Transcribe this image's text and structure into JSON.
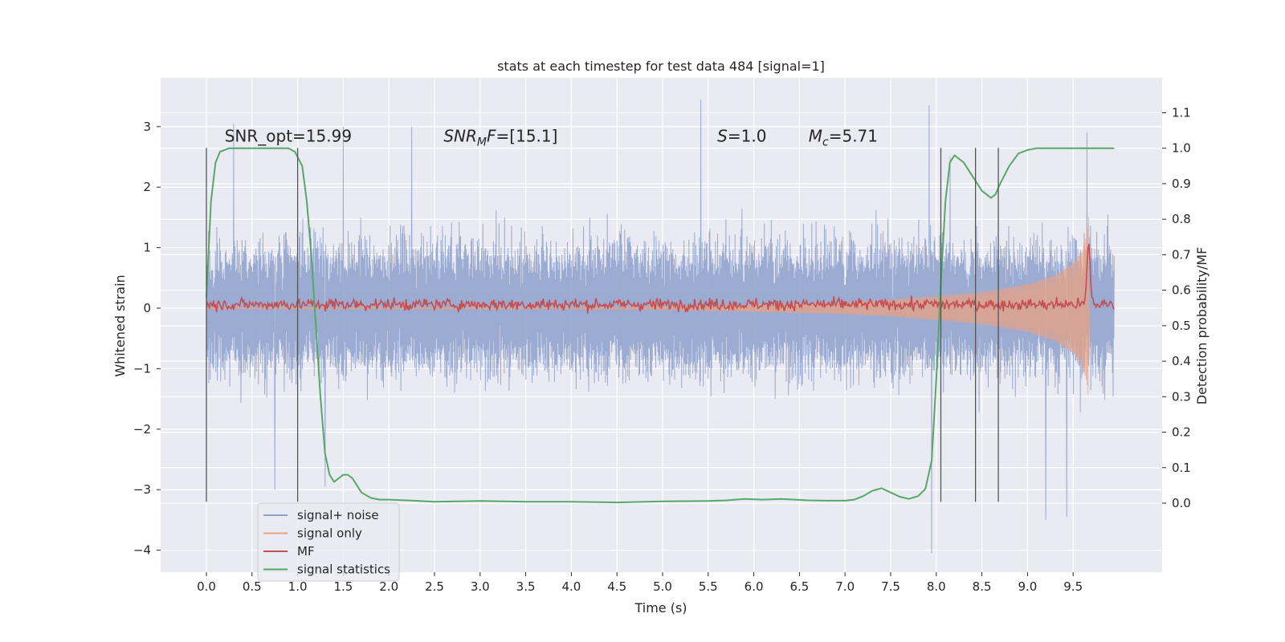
{
  "chart_data": {
    "type": "line",
    "title": "stats at each timestep for test data 484 [signal=1]",
    "xlabel": "Time (s)",
    "ylabel": "Whitened strain",
    "y2label": "Detection probability/MF",
    "xlim": [
      -0.5,
      10.5
    ],
    "ylim": [
      -4.4,
      3.8
    ],
    "y2lim": [
      -0.2,
      1.2
    ],
    "x_ticks": [
      "0.0",
      "0.5",
      "1.0",
      "1.5",
      "2.0",
      "2.5",
      "3.0",
      "3.5",
      "4.0",
      "4.5",
      "5.0",
      "5.5",
      "6.0",
      "6.5",
      "7.0",
      "7.5",
      "8.0",
      "8.5",
      "9.0",
      "9.5"
    ],
    "y_ticks": [
      "3",
      "2",
      "1",
      "0",
      "−1",
      "−2",
      "−3",
      "−4"
    ],
    "y2_ticks": [
      "1.1",
      "1.0",
      "0.9",
      "0.8",
      "0.7",
      "0.6",
      "0.5",
      "0.4",
      "0.3",
      "0.2",
      "0.1",
      "0.0"
    ],
    "grid": true,
    "annotations": [
      {
        "text": "SNR_opt=15.99",
        "x": 0.2,
        "y": 2.75
      },
      {
        "text": "SNR_MF=[15.1]",
        "x": 2.6,
        "y": 2.75
      },
      {
        "text": "S=1.0",
        "x": 5.6,
        "y": 2.75
      },
      {
        "text": "M_c=5.71",
        "x": 6.6,
        "y": 2.75
      }
    ],
    "vlines_x": [
      0.0,
      1.0,
      8.05,
      8.43,
      8.68
    ],
    "vlines_yrange": [
      -3.2,
      2.65
    ],
    "legend": {
      "position": "lower-left",
      "entries": [
        {
          "label": "signal+ noise",
          "color": "#8da0cb"
        },
        {
          "label": "signal only",
          "color": "#e8a182"
        },
        {
          "label": "MF",
          "color": "#c44e52"
        },
        {
          "label": "signal statistics",
          "color": "#55a868"
        }
      ]
    },
    "colors": {
      "background": "#eaeaf2",
      "grid": "#ffffff",
      "signal_noise": "#8da0cb",
      "signal_only": "#e8a182",
      "mf": "#c44e52",
      "signal_statistics": "#55a868",
      "vline": "#555555"
    },
    "series": [
      {
        "name": "signal+ noise",
        "axis": "left",
        "x_range": [
          0.0,
          9.95
        ],
        "envelope_typical": 1.6,
        "y_min": -4.05,
        "y_max": 3.45,
        "peaks": [
          [
            0.3,
            3.05
          ],
          [
            1.5,
            3.0
          ],
          [
            2.25,
            3.0
          ],
          [
            5.42,
            3.45
          ],
          [
            7.92,
            3.35
          ],
          [
            8.15,
            2.5
          ],
          [
            9.65,
            2.9
          ],
          [
            7.95,
            -4.05
          ],
          [
            9.2,
            -3.5
          ],
          [
            9.43,
            -3.45
          ],
          [
            0.75,
            -3.0
          ],
          [
            1.3,
            -2.95
          ]
        ]
      },
      {
        "name": "signal only",
        "axis": "left",
        "x": [
          4.0,
          5.0,
          6.0,
          7.0,
          7.5,
          8.0,
          8.5,
          9.0,
          9.3,
          9.5,
          9.6,
          9.65,
          9.67,
          9.68
        ],
        "amplitude": [
          0.01,
          0.03,
          0.06,
          0.1,
          0.14,
          0.2,
          0.27,
          0.4,
          0.55,
          0.75,
          0.95,
          1.25,
          1.55,
          0.0
        ]
      },
      {
        "name": "MF",
        "axis": "right",
        "baseline": 0.56,
        "noise": 0.015,
        "peak": {
          "x": 9.67,
          "y": 0.73
        }
      },
      {
        "name": "signal statistics",
        "axis": "right",
        "x": [
          0.0,
          0.05,
          0.1,
          0.15,
          0.25,
          0.35,
          0.5,
          0.7,
          0.9,
          0.97,
          1.05,
          1.1,
          1.15,
          1.2,
          1.25,
          1.3,
          1.35,
          1.4,
          1.45,
          1.5,
          1.55,
          1.6,
          1.7,
          1.8,
          1.9,
          2.0,
          2.2,
          2.5,
          3.0,
          3.5,
          4.0,
          4.5,
          5.0,
          5.5,
          5.7,
          5.9,
          6.1,
          6.3,
          6.6,
          6.8,
          7.0,
          7.1,
          7.2,
          7.3,
          7.4,
          7.5,
          7.6,
          7.7,
          7.8,
          7.88,
          7.95,
          8.0,
          8.05,
          8.1,
          8.15,
          8.2,
          8.3,
          8.4,
          8.5,
          8.6,
          8.65,
          8.7,
          8.8,
          8.9,
          9.0,
          9.1,
          9.2,
          9.5,
          9.95
        ],
        "y": [
          0.58,
          0.85,
          0.96,
          0.99,
          1.0,
          1.0,
          1.0,
          1.0,
          1.0,
          0.99,
          0.95,
          0.85,
          0.7,
          0.5,
          0.3,
          0.14,
          0.08,
          0.06,
          0.07,
          0.08,
          0.08,
          0.07,
          0.03,
          0.015,
          0.01,
          0.01,
          0.008,
          0.004,
          0.006,
          0.004,
          0.004,
          0.002,
          0.005,
          0.006,
          0.008,
          0.012,
          0.01,
          0.012,
          0.008,
          0.007,
          0.007,
          0.01,
          0.02,
          0.035,
          0.042,
          0.03,
          0.018,
          0.012,
          0.02,
          0.04,
          0.12,
          0.35,
          0.62,
          0.85,
          0.96,
          0.98,
          0.96,
          0.92,
          0.88,
          0.86,
          0.87,
          0.9,
          0.95,
          0.985,
          0.995,
          1.0,
          1.0,
          1.0,
          1.0
        ]
      }
    ]
  }
}
